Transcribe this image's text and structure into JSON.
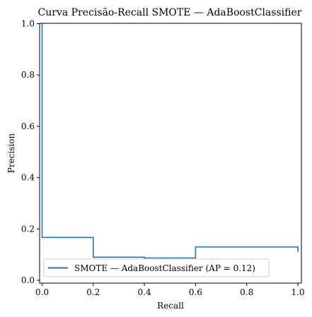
{
  "chart_data": {
    "type": "line",
    "title": "Curva Precisão-Recall SMOTE — AdaBoostClassifier",
    "xlabel": "Recall",
    "ylabel": "Precision",
    "xlim": [
      0.0,
      1.0
    ],
    "ylim": [
      0.0,
      1.0
    ],
    "x_ticks": [
      "0.0",
      "0.2",
      "0.4",
      "0.6",
      "0.8",
      "1.0"
    ],
    "y_ticks": [
      "0.0",
      "0.2",
      "0.4",
      "0.6",
      "0.8",
      "1.0"
    ],
    "grid": false,
    "legend_position": "lower-left",
    "step": "post",
    "series": [
      {
        "name": "SMOTE — AdaBoostClassifier (AP = 0.12)",
        "color": "#1f77b4",
        "x": [
          1.0,
          1.0,
          0.6,
          0.4,
          0.2,
          0.0,
          0.0
        ],
        "y": [
          0.11,
          0.13,
          0.087,
          0.09,
          0.167,
          1.0,
          1.0
        ]
      }
    ]
  }
}
